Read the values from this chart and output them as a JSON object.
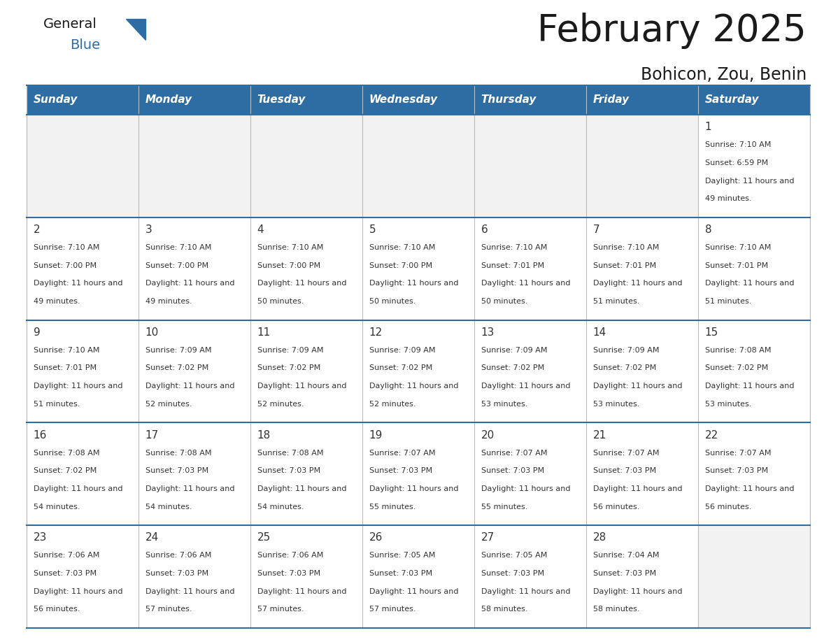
{
  "title": "February 2025",
  "subtitle": "Bohicon, Zou, Benin",
  "days_of_week": [
    "Sunday",
    "Monday",
    "Tuesday",
    "Wednesday",
    "Thursday",
    "Friday",
    "Saturday"
  ],
  "header_bg": "#2e6da4",
  "header_text_color": "#ffffff",
  "cell_bg_light": "#f2f2f2",
  "cell_bg_white": "#ffffff",
  "border_color": "#2e6da4",
  "grid_color": "#bbbbbb",
  "text_color": "#333333",
  "day_number_color": "#333333",
  "title_color": "#1a1a1a",
  "calendar_data": [
    [
      null,
      null,
      null,
      null,
      null,
      null,
      {
        "day": 1,
        "sunrise": "7:10 AM",
        "sunset": "6:59 PM",
        "daylight": "11 hours and 49 minutes."
      }
    ],
    [
      {
        "day": 2,
        "sunrise": "7:10 AM",
        "sunset": "7:00 PM",
        "daylight": "11 hours and 49 minutes."
      },
      {
        "day": 3,
        "sunrise": "7:10 AM",
        "sunset": "7:00 PM",
        "daylight": "11 hours and 49 minutes."
      },
      {
        "day": 4,
        "sunrise": "7:10 AM",
        "sunset": "7:00 PM",
        "daylight": "11 hours and 50 minutes."
      },
      {
        "day": 5,
        "sunrise": "7:10 AM",
        "sunset": "7:00 PM",
        "daylight": "11 hours and 50 minutes."
      },
      {
        "day": 6,
        "sunrise": "7:10 AM",
        "sunset": "7:01 PM",
        "daylight": "11 hours and 50 minutes."
      },
      {
        "day": 7,
        "sunrise": "7:10 AM",
        "sunset": "7:01 PM",
        "daylight": "11 hours and 51 minutes."
      },
      {
        "day": 8,
        "sunrise": "7:10 AM",
        "sunset": "7:01 PM",
        "daylight": "11 hours and 51 minutes."
      }
    ],
    [
      {
        "day": 9,
        "sunrise": "7:10 AM",
        "sunset": "7:01 PM",
        "daylight": "11 hours and 51 minutes."
      },
      {
        "day": 10,
        "sunrise": "7:09 AM",
        "sunset": "7:02 PM",
        "daylight": "11 hours and 52 minutes."
      },
      {
        "day": 11,
        "sunrise": "7:09 AM",
        "sunset": "7:02 PM",
        "daylight": "11 hours and 52 minutes."
      },
      {
        "day": 12,
        "sunrise": "7:09 AM",
        "sunset": "7:02 PM",
        "daylight": "11 hours and 52 minutes."
      },
      {
        "day": 13,
        "sunrise": "7:09 AM",
        "sunset": "7:02 PM",
        "daylight": "11 hours and 53 minutes."
      },
      {
        "day": 14,
        "sunrise": "7:09 AM",
        "sunset": "7:02 PM",
        "daylight": "11 hours and 53 minutes."
      },
      {
        "day": 15,
        "sunrise": "7:08 AM",
        "sunset": "7:02 PM",
        "daylight": "11 hours and 53 minutes."
      }
    ],
    [
      {
        "day": 16,
        "sunrise": "7:08 AM",
        "sunset": "7:02 PM",
        "daylight": "11 hours and 54 minutes."
      },
      {
        "day": 17,
        "sunrise": "7:08 AM",
        "sunset": "7:03 PM",
        "daylight": "11 hours and 54 minutes."
      },
      {
        "day": 18,
        "sunrise": "7:08 AM",
        "sunset": "7:03 PM",
        "daylight": "11 hours and 54 minutes."
      },
      {
        "day": 19,
        "sunrise": "7:07 AM",
        "sunset": "7:03 PM",
        "daylight": "11 hours and 55 minutes."
      },
      {
        "day": 20,
        "sunrise": "7:07 AM",
        "sunset": "7:03 PM",
        "daylight": "11 hours and 55 minutes."
      },
      {
        "day": 21,
        "sunrise": "7:07 AM",
        "sunset": "7:03 PM",
        "daylight": "11 hours and 56 minutes."
      },
      {
        "day": 22,
        "sunrise": "7:07 AM",
        "sunset": "7:03 PM",
        "daylight": "11 hours and 56 minutes."
      }
    ],
    [
      {
        "day": 23,
        "sunrise": "7:06 AM",
        "sunset": "7:03 PM",
        "daylight": "11 hours and 56 minutes."
      },
      {
        "day": 24,
        "sunrise": "7:06 AM",
        "sunset": "7:03 PM",
        "daylight": "11 hours and 57 minutes."
      },
      {
        "day": 25,
        "sunrise": "7:06 AM",
        "sunset": "7:03 PM",
        "daylight": "11 hours and 57 minutes."
      },
      {
        "day": 26,
        "sunrise": "7:05 AM",
        "sunset": "7:03 PM",
        "daylight": "11 hours and 57 minutes."
      },
      {
        "day": 27,
        "sunrise": "7:05 AM",
        "sunset": "7:03 PM",
        "daylight": "11 hours and 58 minutes."
      },
      {
        "day": 28,
        "sunrise": "7:04 AM",
        "sunset": "7:03 PM",
        "daylight": "11 hours and 58 minutes."
      },
      null
    ]
  ],
  "logo_text_general": "General",
  "logo_text_blue": "Blue",
  "logo_color_general": "#1a1a1a",
  "logo_color_blue": "#2e6da4",
  "logo_triangle_color": "#2e6da4",
  "title_fontsize": 38,
  "subtitle_fontsize": 17,
  "header_fontsize": 11,
  "day_num_fontsize": 11,
  "cell_text_fontsize": 8
}
